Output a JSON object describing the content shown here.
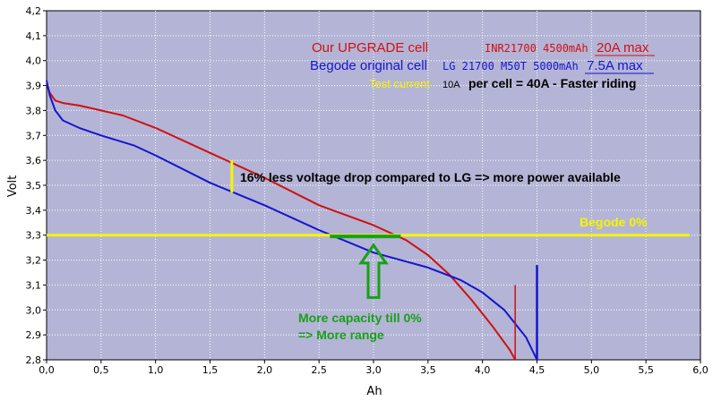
{
  "chart_data": {
    "type": "line",
    "xlabel": "Ah",
    "ylabel": "Volt",
    "xlim": [
      0,
      6
    ],
    "ylim": [
      2.8,
      4.2
    ],
    "x_ticks": [
      "0,0",
      "0,5",
      "1,0",
      "1,5",
      "2,0",
      "2,5",
      "3,0",
      "3,5",
      "4,0",
      "4,5",
      "5,0",
      "5,5",
      "6,0"
    ],
    "y_ticks": [
      "2,8",
      "2,9",
      "3,0",
      "3,1",
      "3,2",
      "3,3",
      "3,4",
      "3,5",
      "3,6",
      "3,7",
      "3,8",
      "3,9",
      "4,0",
      "4,1",
      "4,2"
    ],
    "grid": true,
    "background_color": "#b4b4d6",
    "series": [
      {
        "name": "Our UPGRADE cell",
        "color": "#d01010",
        "points": [
          [
            0.0,
            3.91
          ],
          [
            0.03,
            3.87
          ],
          [
            0.08,
            3.84
          ],
          [
            0.15,
            3.83
          ],
          [
            0.3,
            3.82
          ],
          [
            0.5,
            3.8
          ],
          [
            0.7,
            3.78
          ],
          [
            1.0,
            3.73
          ],
          [
            1.5,
            3.63
          ],
          [
            2.0,
            3.53
          ],
          [
            2.5,
            3.42
          ],
          [
            3.0,
            3.34
          ],
          [
            3.3,
            3.28
          ],
          [
            3.5,
            3.22
          ],
          [
            3.7,
            3.14
          ],
          [
            3.9,
            3.04
          ],
          [
            4.1,
            2.93
          ],
          [
            4.25,
            2.84
          ],
          [
            4.3,
            2.8
          ]
        ]
      },
      {
        "name": "Begode original cell",
        "color": "#1515d0",
        "points": [
          [
            0.0,
            3.92
          ],
          [
            0.03,
            3.86
          ],
          [
            0.08,
            3.8
          ],
          [
            0.15,
            3.76
          ],
          [
            0.3,
            3.73
          ],
          [
            0.5,
            3.7
          ],
          [
            0.8,
            3.66
          ],
          [
            1.0,
            3.62
          ],
          [
            1.5,
            3.51
          ],
          [
            2.0,
            3.42
          ],
          [
            2.5,
            3.32
          ],
          [
            3.0,
            3.23
          ],
          [
            3.5,
            3.17
          ],
          [
            3.8,
            3.12
          ],
          [
            4.0,
            3.07
          ],
          [
            4.2,
            3.0
          ],
          [
            4.4,
            2.89
          ],
          [
            4.5,
            2.8
          ]
        ]
      }
    ],
    "end_markers": [
      {
        "x": 4.3,
        "y_from": 2.8,
        "y_to": 3.1,
        "color": "#d01010"
      },
      {
        "x": 4.5,
        "y_from": 2.8,
        "y_to": 3.18,
        "color": "#1515d0"
      }
    ],
    "reference_line": {
      "y": 3.3,
      "x_from": 0.0,
      "x_to": 5.9,
      "label": "Begode 0%",
      "color": "#f5f500"
    },
    "voltage_drop_marker": {
      "x": 1.7,
      "y_from": 3.47,
      "y_to": 3.6,
      "color": "#f5f500"
    },
    "capacity_gain": {
      "x_from": 2.6,
      "x_to": 3.25,
      "y": 3.295,
      "arrow_x": 3.0,
      "arrow_y_tip": 3.26,
      "arrow_y_base": 3.05,
      "color": "#18a018"
    },
    "annotations": {
      "legend_upgrade_name": "Our UPGRADE cell",
      "legend_upgrade_spec": "INR21700 4500mAh",
      "legend_upgrade_max": "20A max",
      "legend_original_name": "Begode original cell",
      "legend_original_spec": "LG 21700 M50T 5000mAh",
      "legend_original_max": "7.5A max",
      "test_current_label": "Test current",
      "test_current_value": "10A",
      "test_current_rest": "per cell = 40A - Faster riding",
      "voltage_drop_text": "16% less voltage drop compared to LG => more power available",
      "capacity_line1": "More capacity till 0%",
      "capacity_line2": "=> More range"
    }
  }
}
